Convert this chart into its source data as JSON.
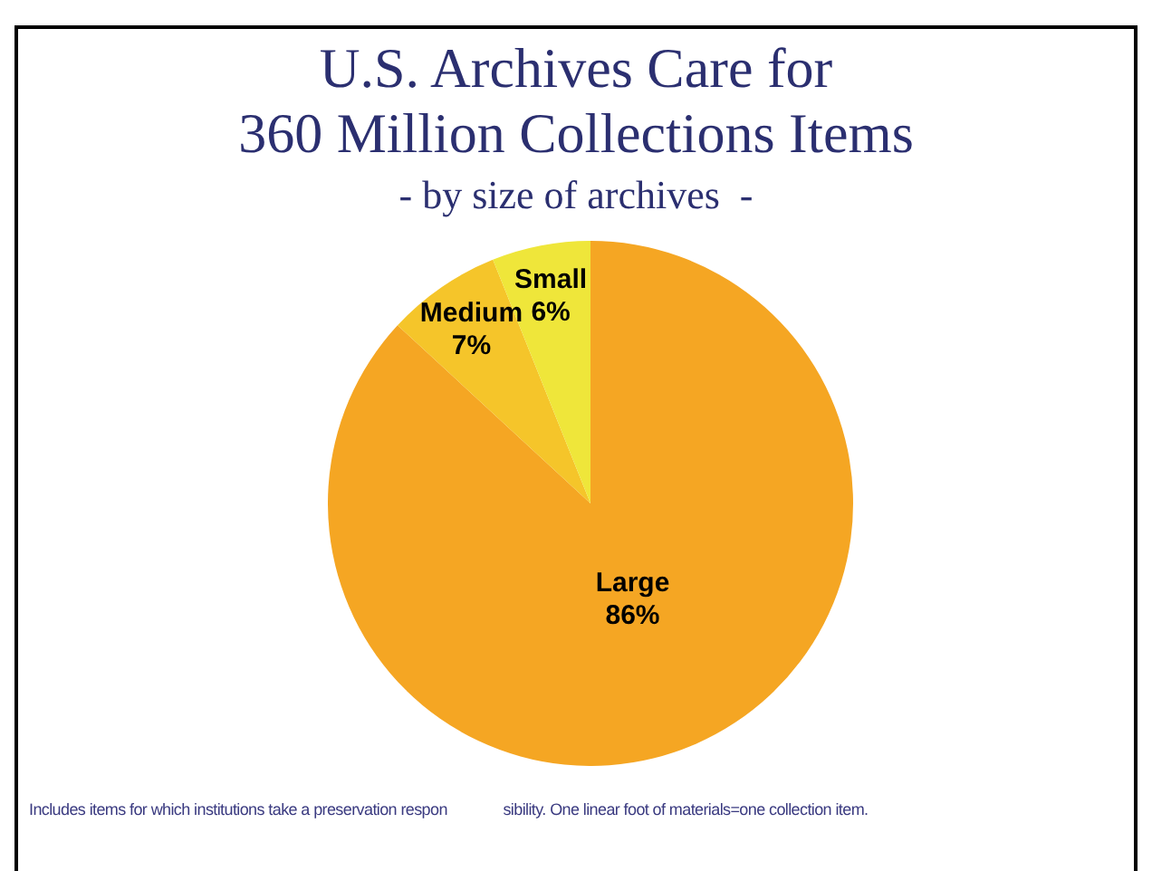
{
  "chart_data": {
    "type": "pie",
    "title": "U.S. Archives Care for\n360 Million Collections Items",
    "subtitle": "- by size of archives  -",
    "categories": [
      "Large",
      "Medium",
      "Small"
    ],
    "values": [
      86,
      7,
      6
    ],
    "colors": [
      "#f5a623",
      "#f5c52a",
      "#efe63a"
    ],
    "value_labels": [
      "86%",
      "7%",
      "6%"
    ],
    "legend": false,
    "annotations": [
      "Includes items for which institutions take a preservation respon              sibility. One linear foot of materials=one collection item."
    ]
  }
}
